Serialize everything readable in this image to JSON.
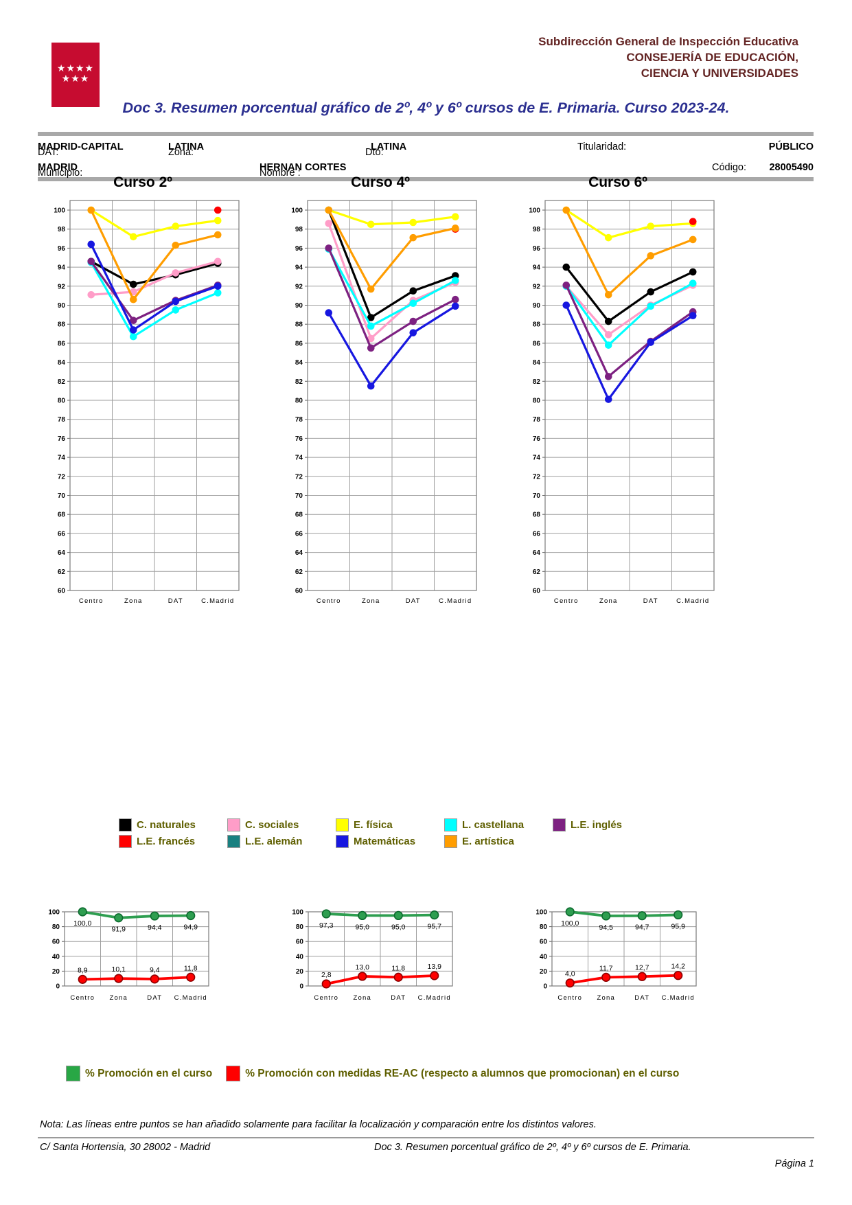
{
  "header": {
    "org_line1": "Subdirección General de Inspección Educativa",
    "org_line2": "CONSEJERÍA DE EDUCACIÓN,",
    "org_line3": "CIENCIA Y UNIVERSIDADES"
  },
  "title": "Doc 3. Resumen porcentual gráfico de  2º, 4º y  6º cursos de E. Primaria. Curso 2023-24.",
  "info": {
    "dat_label": "DAT:",
    "dat_value": "MADRID-CAPITAL",
    "zona_label": "Zona:",
    "zona_value": "LATINA",
    "dto_label": "Dto:",
    "dto_value": "LATINA",
    "titularidad_label": "Titularidad:",
    "titularidad_value": "PÚBLICO",
    "municipio_label": "Municipio:",
    "municipio_value": "MADRID",
    "nombre_label": "Nombre :",
    "nombre_value": "HERNAN CORTES",
    "codigo_label": "Código:",
    "codigo_value": "28005490"
  },
  "chart_data": [
    {
      "type": "line",
      "title": "Curso 2º",
      "categories": [
        "Centro",
        "Zona",
        "DAT",
        "C.Madrid"
      ],
      "ylim": [
        60,
        100
      ],
      "ytick_step": 2,
      "grid": true,
      "legend_position": "shared-below",
      "series": [
        {
          "name": "C. naturales",
          "color": "#000000",
          "values": [
            94.6,
            92.2,
            93.2,
            94.4
          ]
        },
        {
          "name": "C. sociales",
          "color": "#ff9dc8",
          "values": [
            91.1,
            91.4,
            93.4,
            94.6
          ]
        },
        {
          "name": "E. física",
          "color": "#ffff00",
          "values": [
            100.0,
            97.2,
            98.3,
            98.9
          ]
        },
        {
          "name": "L. castellana",
          "color": "#00ffff",
          "values": [
            94.5,
            86.7,
            89.5,
            91.3
          ]
        },
        {
          "name": "L.E. inglés",
          "color": "#7d2181",
          "values": [
            94.6,
            88.4,
            90.5,
            92.1
          ]
        },
        {
          "name": "L.E. alemán",
          "color": "#198080",
          "values": [
            null,
            null,
            null,
            null
          ]
        },
        {
          "name": "Matemáticas",
          "color": "#1717e0",
          "values": [
            96.4,
            87.4,
            90.4,
            92.0
          ]
        },
        {
          "name": "L.E. francés",
          "color": "#ff0000",
          "values": [
            null,
            null,
            null,
            100.0
          ]
        },
        {
          "name": "E. artística",
          "color": "#ff9d00",
          "values": [
            100.0,
            90.6,
            96.3,
            97.4
          ]
        }
      ]
    },
    {
      "type": "line",
      "title": "Curso 4º",
      "categories": [
        "Centro",
        "Zona",
        "DAT",
        "C.Madrid"
      ],
      "ylim": [
        60,
        100
      ],
      "ytick_step": 2,
      "grid": true,
      "legend_position": "shared-below",
      "series": [
        {
          "name": "C. naturales",
          "color": "#000000",
          "values": [
            100.0,
            88.7,
            91.5,
            93.1
          ]
        },
        {
          "name": "C. sociales",
          "color": "#ff9dc8",
          "values": [
            98.6,
            86.5,
            90.5,
            92.4
          ]
        },
        {
          "name": "E. física",
          "color": "#ffff00",
          "values": [
            100.0,
            98.5,
            98.7,
            99.3
          ]
        },
        {
          "name": "L. castellana",
          "color": "#00ffff",
          "values": [
            95.9,
            87.8,
            90.2,
            92.6
          ]
        },
        {
          "name": "L.E. inglés",
          "color": "#7d2181",
          "values": [
            96.0,
            85.5,
            88.3,
            90.6
          ]
        },
        {
          "name": "L.E. alemán",
          "color": "#198080",
          "values": [
            null,
            null,
            null,
            null
          ]
        },
        {
          "name": "Matemáticas",
          "color": "#1717e0",
          "values": [
            89.2,
            81.5,
            87.1,
            89.9
          ]
        },
        {
          "name": "L.E. francés",
          "color": "#ff0000",
          "values": [
            null,
            null,
            null,
            98.0
          ]
        },
        {
          "name": "E. artística",
          "color": "#ff9d00",
          "values": [
            100.0,
            91.7,
            97.1,
            98.1
          ]
        }
      ]
    },
    {
      "type": "line",
      "title": "Curso 6º",
      "categories": [
        "Centro",
        "Zona",
        "DAT",
        "C.Madrid"
      ],
      "ylim": [
        60,
        100
      ],
      "ytick_step": 2,
      "grid": true,
      "legend_position": "shared-below",
      "series": [
        {
          "name": "C. naturales",
          "color": "#000000",
          "values": [
            94.0,
            88.3,
            91.4,
            93.5
          ]
        },
        {
          "name": "C. sociales",
          "color": "#ff9dc8",
          "values": [
            92.0,
            86.9,
            90.0,
            92.1
          ]
        },
        {
          "name": "E. física",
          "color": "#ffff00",
          "values": [
            100.0,
            97.1,
            98.3,
            98.6
          ]
        },
        {
          "name": "L. castellana",
          "color": "#00ffff",
          "values": [
            92.0,
            85.8,
            89.9,
            92.3
          ]
        },
        {
          "name": "L.E. inglés",
          "color": "#7d2181",
          "values": [
            92.1,
            82.5,
            86.2,
            89.3
          ]
        },
        {
          "name": "L.E. alemán",
          "color": "#198080",
          "values": [
            null,
            null,
            null,
            null
          ]
        },
        {
          "name": "Matemáticas",
          "color": "#1717e0",
          "values": [
            90.0,
            80.1,
            86.1,
            88.9
          ]
        },
        {
          "name": "L.E. francés",
          "color": "#ff0000",
          "values": [
            null,
            null,
            null,
            98.8
          ]
        },
        {
          "name": "E. artística",
          "color": "#ff9d00",
          "values": [
            100.0,
            91.1,
            95.2,
            96.9
          ]
        }
      ]
    },
    {
      "type": "line",
      "title": "",
      "categories": [
        "Centro",
        "Zona",
        "DAT",
        "C.Madrid"
      ],
      "ylim": [
        0,
        100
      ],
      "ytick_step": 20,
      "grid": true,
      "legend_position": "shared-below",
      "series": [
        {
          "name": "% Promoción en el curso",
          "color": "#2e9e50",
          "values": [
            100.0,
            91.9,
            94.4,
            94.9
          ],
          "labels": [
            "100,0",
            "91,9",
            "94,4",
            "94,9"
          ],
          "label_side": "below"
        },
        {
          "name": "% Promoción con medidas RE-AC (respecto a alumnos que promocionan) en el curso",
          "color": "#ff0000",
          "values": [
            8.9,
            10.1,
            9.4,
            11.8
          ],
          "labels": [
            "8,9",
            "10,1",
            "9,4",
            "11,8"
          ],
          "label_side": "above"
        }
      ]
    },
    {
      "type": "line",
      "title": "",
      "categories": [
        "Centro",
        "Zona",
        "DAT",
        "C.Madrid"
      ],
      "ylim": [
        0,
        100
      ],
      "ytick_step": 20,
      "grid": true,
      "legend_position": "shared-below",
      "series": [
        {
          "name": "% Promoción en el curso",
          "color": "#2e9e50",
          "values": [
            97.3,
            95.0,
            95.0,
            95.7
          ],
          "labels": [
            "97,3",
            "95,0",
            "95,0",
            "95,7"
          ],
          "label_side": "below"
        },
        {
          "name": "% Promoción con medidas RE-AC (respecto a alumnos que promocionan) en el curso",
          "color": "#ff0000",
          "values": [
            2.8,
            13.0,
            11.8,
            13.9
          ],
          "labels": [
            "2,8",
            "13,0",
            "11,8",
            "13,9"
          ],
          "label_side": "above"
        }
      ]
    },
    {
      "type": "line",
      "title": "",
      "categories": [
        "Centro",
        "Zona",
        "DAT",
        "C.Madrid"
      ],
      "ylim": [
        0,
        100
      ],
      "ytick_step": 20,
      "grid": true,
      "legend_position": "shared-below",
      "series": [
        {
          "name": "% Promoción en el curso",
          "color": "#2e9e50",
          "values": [
            100.0,
            94.5,
            94.7,
            95.9
          ],
          "labels": [
            "100,0",
            "94,5",
            "94,7",
            "95,9"
          ],
          "label_side": "below"
        },
        {
          "name": "% Promoción con medidas RE-AC (respecto a alumnos que promocionan) en el curso",
          "color": "#ff0000",
          "values": [
            4.0,
            11.7,
            12.7,
            14.2
          ],
          "labels": [
            "4,0",
            "11,7",
            "12,7",
            "14,2"
          ],
          "label_side": "above"
        }
      ]
    }
  ],
  "legend_subjects": [
    [
      {
        "label": "C. naturales",
        "color": "#000000"
      },
      {
        "label": "C. sociales",
        "color": "#ff9dc8"
      },
      {
        "label": "E. física",
        "color": "#ffff00"
      },
      {
        "label": "L. castellana",
        "color": "#00ffff"
      },
      {
        "label": "L.E. inglés",
        "color": "#7d2181"
      }
    ],
    [
      {
        "label": "L.E. francés",
        "color": "#ff0000"
      },
      {
        "label": "L.E. alemán",
        "color": "#198080"
      },
      {
        "label": "Matemáticas",
        "color": "#1717e0"
      },
      {
        "label": "E. artística",
        "color": "#ff9d00"
      }
    ]
  ],
  "legend_promocion": [
    {
      "label": "% Promoción en el curso",
      "color": "#28a745"
    },
    {
      "label": "% Promoción con medidas RE-AC (respecto a alumnos que promocionan) en el curso",
      "color": "#ff0000"
    }
  ],
  "nota": "Nota: Las líneas entre puntos se han añadido solamente para facilitar la localización y comparación entre los distintos valores.",
  "footer": {
    "address": "C/ Santa Hortensia, 30   28002 - Madrid",
    "doc_ref": "Doc 3. Resumen porcentual gráfico de  2º, 4º y  6º cursos de E. Primaria.",
    "page": "Página 1"
  },
  "colors": {
    "logo_red": "#c60c30",
    "header_text": "#632423",
    "title_blue": "#2b2f90",
    "legend_text": "#5f5f00"
  }
}
